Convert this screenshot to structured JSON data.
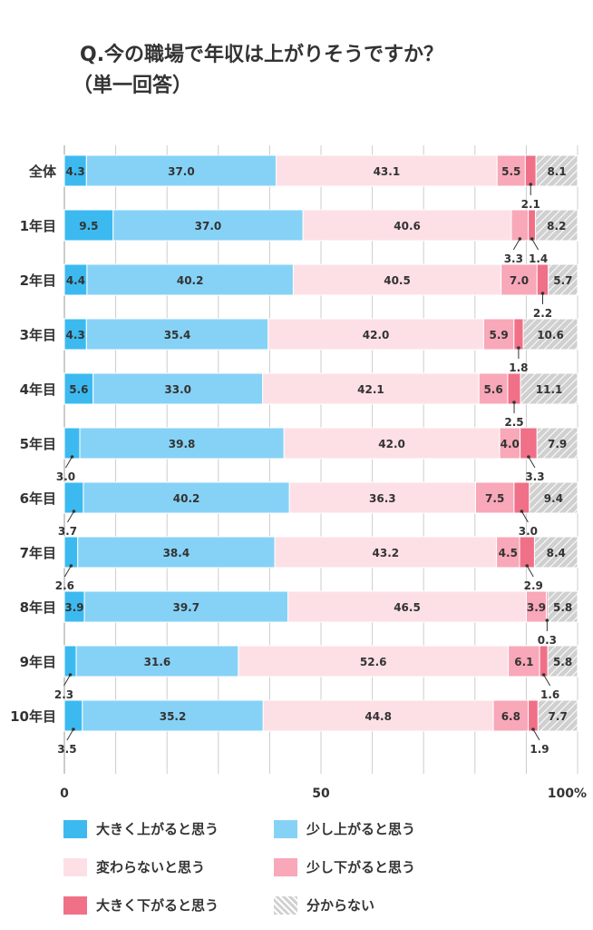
{
  "title": {
    "line1": "Q.今の職場で年収は上がりそうですか？",
    "line2": "（単一回答）"
  },
  "colors": {
    "s1": "#3cbaf0",
    "s2": "#86d2f6",
    "s3": "#fde0e6",
    "s4": "#f8a8b8",
    "s5": "#f07088",
    "s6": "#c8c8c8",
    "grid": "#cccccc",
    "text": "#333333"
  },
  "chart_data": {
    "type": "bar",
    "orientation": "horizontal-stacked-100",
    "categories": [
      "全体",
      "1年目",
      "2年目",
      "3年目",
      "4年目",
      "5年目",
      "6年目",
      "7年目",
      "8年目",
      "9年目",
      "10年目"
    ],
    "series": [
      {
        "name": "大きく上がると思う",
        "values": [
          4.3,
          9.5,
          4.4,
          4.3,
          5.6,
          3.0,
          3.7,
          2.6,
          3.9,
          2.3,
          3.5
        ]
      },
      {
        "name": "少し上がると思う",
        "values": [
          37.0,
          37.0,
          40.2,
          35.4,
          33.0,
          39.8,
          40.2,
          38.4,
          39.7,
          31.6,
          35.2
        ]
      },
      {
        "name": "変わらないと思う",
        "values": [
          43.1,
          40.6,
          40.5,
          42.0,
          42.1,
          42.0,
          36.3,
          43.2,
          46.5,
          52.6,
          44.8
        ]
      },
      {
        "name": "少し下がると思う",
        "values": [
          5.5,
          3.3,
          7.0,
          5.9,
          5.6,
          4.0,
          7.5,
          4.5,
          3.9,
          6.1,
          6.8
        ]
      },
      {
        "name": "大きく下がると思う",
        "values": [
          2.1,
          1.4,
          2.2,
          1.8,
          2.5,
          3.3,
          3.0,
          2.9,
          0.3,
          1.6,
          1.9
        ]
      },
      {
        "name": "分からない",
        "values": [
          8.1,
          8.2,
          5.7,
          10.6,
          11.1,
          7.9,
          9.4,
          8.4,
          5.8,
          5.8,
          7.7
        ]
      }
    ],
    "xlim": [
      0,
      100
    ],
    "x_ticks": [
      "0",
      "50",
      "100%"
    ],
    "grid": true,
    "legend_position": "bottom"
  }
}
